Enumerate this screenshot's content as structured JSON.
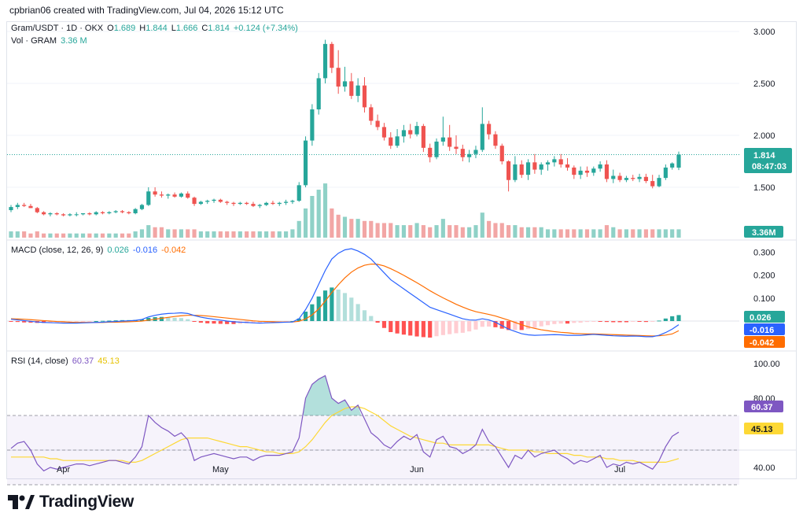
{
  "header": {
    "credit": "cpbrian06 created with TradingView.com, Jul 04, 2026 15:12 UTC"
  },
  "symbol_legend": {
    "symbol": "Gram/USDT · 1D · OKX",
    "open_label": "O",
    "open": "1.689",
    "high_label": "H",
    "high": "1.844",
    "low_label": "L",
    "low": "1.666",
    "close_label": "C",
    "close": "1.814",
    "change": "+0.124 (+7.34%)"
  },
  "volume_legend": {
    "label": "Vol · GRAM",
    "value": "3.36 M"
  },
  "macd_legend": {
    "label": "MACD (close, 12, 26, 9)",
    "hist": "0.026",
    "macd": "-0.016",
    "signal": "-0.042"
  },
  "rsi_legend": {
    "label": "RSI (14, close)",
    "rsi": "60.37",
    "rsi_ma": "45.13"
  },
  "price_tag": {
    "price": "1.814",
    "countdown": "08:47:03"
  },
  "volume_tag": "3.36M",
  "macd_tags": {
    "hist": "0.026",
    "macd": "-0.016",
    "signal": "-0.042"
  },
  "rsi_tags": {
    "rsi": "60.37",
    "rsi_ma": "45.13"
  },
  "brand": "TradingView",
  "colors": {
    "up": "#26a69a",
    "down": "#ef5350",
    "vol_up": "#8fd1c7",
    "vol_down": "#f2a6a5",
    "macd_line": "#2962ff",
    "signal_line": "#ff6d00",
    "rsi_line": "#7e57c2",
    "rsi_ma": "#fdd835"
  },
  "chart_data": [
    {
      "type": "candlestick",
      "title": "Gram/USDT · 1D · OKX",
      "x_ticks": [
        "Apr",
        "May",
        "Jun",
        "Jul"
      ],
      "y_ticks": [
        "3.000",
        "2.500",
        "2.000",
        "1.500"
      ],
      "ylim": [
        1.3,
        3.1
      ],
      "ohlc": [
        [
          1.28,
          1.33,
          1.26,
          1.31
        ],
        [
          1.31,
          1.35,
          1.29,
          1.33
        ],
        [
          1.33,
          1.35,
          1.31,
          1.32
        ],
        [
          1.32,
          1.34,
          1.3,
          1.3
        ],
        [
          1.3,
          1.31,
          1.25,
          1.26
        ],
        [
          1.26,
          1.27,
          1.23,
          1.24
        ],
        [
          1.24,
          1.26,
          1.22,
          1.25
        ],
        [
          1.25,
          1.26,
          1.23,
          1.24
        ],
        [
          1.24,
          1.25,
          1.22,
          1.23
        ],
        [
          1.23,
          1.25,
          1.22,
          1.24
        ],
        [
          1.24,
          1.26,
          1.22,
          1.24
        ],
        [
          1.24,
          1.25,
          1.23,
          1.25
        ],
        [
          1.25,
          1.26,
          1.23,
          1.24
        ],
        [
          1.24,
          1.27,
          1.23,
          1.26
        ],
        [
          1.26,
          1.27,
          1.24,
          1.25
        ],
        [
          1.25,
          1.27,
          1.24,
          1.26
        ],
        [
          1.26,
          1.28,
          1.25,
          1.27
        ],
        [
          1.27,
          1.28,
          1.25,
          1.26
        ],
        [
          1.26,
          1.27,
          1.24,
          1.25
        ],
        [
          1.25,
          1.3,
          1.24,
          1.29
        ],
        [
          1.29,
          1.34,
          1.28,
          1.33
        ],
        [
          1.33,
          1.5,
          1.32,
          1.46
        ],
        [
          1.46,
          1.5,
          1.41,
          1.43
        ],
        [
          1.43,
          1.46,
          1.4,
          1.42
        ],
        [
          1.42,
          1.44,
          1.39,
          1.43
        ],
        [
          1.43,
          1.45,
          1.4,
          1.41
        ],
        [
          1.41,
          1.45,
          1.4,
          1.44
        ],
        [
          1.44,
          1.46,
          1.39,
          1.4
        ],
        [
          1.4,
          1.41,
          1.32,
          1.34
        ],
        [
          1.34,
          1.37,
          1.33,
          1.36
        ],
        [
          1.36,
          1.38,
          1.34,
          1.37
        ],
        [
          1.37,
          1.39,
          1.35,
          1.38
        ],
        [
          1.38,
          1.39,
          1.35,
          1.36
        ],
        [
          1.36,
          1.37,
          1.33,
          1.35
        ],
        [
          1.35,
          1.36,
          1.32,
          1.34
        ],
        [
          1.34,
          1.36,
          1.33,
          1.35
        ],
        [
          1.35,
          1.36,
          1.33,
          1.34
        ],
        [
          1.34,
          1.36,
          1.31,
          1.32
        ],
        [
          1.32,
          1.34,
          1.3,
          1.33
        ],
        [
          1.33,
          1.36,
          1.32,
          1.35
        ],
        [
          1.35,
          1.37,
          1.33,
          1.34
        ],
        [
          1.34,
          1.36,
          1.32,
          1.35
        ],
        [
          1.35,
          1.38,
          1.33,
          1.36
        ],
        [
          1.36,
          1.38,
          1.34,
          1.37
        ],
        [
          1.37,
          1.55,
          1.36,
          1.52
        ],
        [
          1.52,
          1.99,
          1.5,
          1.95
        ],
        [
          1.95,
          2.3,
          1.9,
          2.25
        ],
        [
          2.25,
          2.6,
          2.2,
          2.55
        ],
        [
          2.55,
          2.92,
          2.5,
          2.88
        ],
        [
          2.88,
          2.9,
          2.6,
          2.65
        ],
        [
          2.65,
          2.82,
          2.4,
          2.47
        ],
        [
          2.47,
          2.66,
          2.42,
          2.52
        ],
        [
          2.52,
          2.6,
          2.35,
          2.38
        ],
        [
          2.38,
          2.55,
          2.32,
          2.48
        ],
        [
          2.48,
          2.56,
          2.22,
          2.27
        ],
        [
          2.27,
          2.3,
          2.1,
          2.14
        ],
        [
          2.14,
          2.2,
          2.05,
          2.08
        ],
        [
          2.08,
          2.12,
          1.95,
          1.98
        ],
        [
          1.98,
          2.03,
          1.87,
          1.9
        ],
        [
          1.9,
          2.06,
          1.88,
          1.99
        ],
        [
          1.99,
          2.1,
          1.93,
          2.05
        ],
        [
          2.05,
          2.11,
          1.97,
          2.01
        ],
        [
          2.01,
          2.13,
          1.99,
          2.09
        ],
        [
          2.09,
          2.11,
          1.84,
          1.88
        ],
        [
          1.88,
          1.92,
          1.74,
          1.79
        ],
        [
          1.79,
          1.97,
          1.77,
          1.94
        ],
        [
          1.94,
          2.18,
          1.9,
          1.98
        ],
        [
          1.98,
          2.1,
          1.85,
          1.89
        ],
        [
          1.89,
          2.0,
          1.82,
          1.87
        ],
        [
          1.87,
          1.91,
          1.75,
          1.79
        ],
        [
          1.79,
          1.86,
          1.74,
          1.82
        ],
        [
          1.82,
          1.9,
          1.78,
          1.86
        ],
        [
          1.86,
          2.27,
          1.84,
          2.11
        ],
        [
          2.11,
          2.14,
          1.96,
          2.01
        ],
        [
          2.01,
          2.04,
          1.87,
          1.9
        ],
        [
          1.9,
          1.92,
          1.72,
          1.75
        ],
        [
          1.75,
          1.76,
          1.46,
          1.57
        ],
        [
          1.57,
          1.8,
          1.55,
          1.72
        ],
        [
          1.72,
          1.76,
          1.59,
          1.62
        ],
        [
          1.62,
          1.77,
          1.57,
          1.74
        ],
        [
          1.74,
          1.82,
          1.63,
          1.67
        ],
        [
          1.67,
          1.74,
          1.62,
          1.72
        ],
        [
          1.72,
          1.76,
          1.66,
          1.74
        ],
        [
          1.74,
          1.8,
          1.7,
          1.77
        ],
        [
          1.77,
          1.82,
          1.69,
          1.72
        ],
        [
          1.72,
          1.78,
          1.66,
          1.69
        ],
        [
          1.69,
          1.71,
          1.58,
          1.62
        ],
        [
          1.62,
          1.7,
          1.58,
          1.66
        ],
        [
          1.66,
          1.7,
          1.6,
          1.64
        ],
        [
          1.64,
          1.7,
          1.61,
          1.68
        ],
        [
          1.68,
          1.75,
          1.65,
          1.72
        ],
        [
          1.72,
          1.76,
          1.55,
          1.58
        ],
        [
          1.58,
          1.67,
          1.54,
          1.61
        ],
        [
          1.61,
          1.64,
          1.55,
          1.57
        ],
        [
          1.57,
          1.61,
          1.55,
          1.59
        ],
        [
          1.59,
          1.62,
          1.56,
          1.58
        ],
        [
          1.58,
          1.63,
          1.55,
          1.6
        ],
        [
          1.6,
          1.63,
          1.54,
          1.56
        ],
        [
          1.56,
          1.62,
          1.49,
          1.51
        ],
        [
          1.51,
          1.62,
          1.5,
          1.59
        ],
        [
          1.59,
          1.72,
          1.57,
          1.69
        ],
        [
          1.69,
          1.74,
          1.67,
          1.73
        ],
        [
          1.689,
          1.844,
          1.666,
          1.814
        ]
      ]
    },
    {
      "type": "bar",
      "title": "Vol · GRAM",
      "note": "relative daily volume, last bar 3.36 M",
      "values": [
        3,
        3,
        3,
        2,
        3,
        2,
        2,
        2,
        2,
        2,
        2,
        2,
        2,
        2,
        2,
        2,
        2,
        2,
        2,
        3,
        4,
        6,
        5,
        5,
        4,
        4,
        4,
        4,
        4,
        3,
        3,
        3,
        3,
        3,
        3,
        3,
        3,
        3,
        3,
        3,
        3,
        3,
        3,
        4,
        8,
        14,
        20,
        23,
        26,
        14,
        11,
        10,
        9,
        9,
        8,
        8,
        7,
        7,
        7,
        6,
        6,
        6,
        7,
        6,
        5,
        6,
        9,
        6,
        6,
        5,
        5,
        6,
        12,
        8,
        7,
        7,
        6,
        6,
        5,
        5,
        5,
        5,
        4,
        4,
        4,
        4,
        4,
        4,
        4,
        4,
        4,
        6,
        5,
        4,
        4,
        4,
        4,
        4,
        4,
        4,
        4,
        4,
        4
      ],
      "last_value": "3.36M"
    },
    {
      "type": "line",
      "title": "MACD (close, 12, 26, 9)",
      "y_ticks": [
        "0.300",
        "0.200",
        "0.100"
      ],
      "ylim": [
        -0.08,
        0.34
      ],
      "series": [
        {
          "name": "MACD",
          "values": [
            0.008,
            0.005,
            0.002,
            -0.001,
            -0.004,
            -0.006,
            -0.007,
            -0.008,
            -0.009,
            -0.009,
            -0.009,
            -0.008,
            -0.007,
            -0.006,
            -0.005,
            -0.003,
            -0.002,
            0.0,
            0.001,
            0.003,
            0.007,
            0.018,
            0.025,
            0.03,
            0.033,
            0.034,
            0.036,
            0.033,
            0.024,
            0.017,
            0.012,
            0.008,
            0.004,
            0.0,
            -0.003,
            -0.005,
            -0.006,
            -0.008,
            -0.009,
            -0.008,
            -0.007,
            -0.006,
            -0.005,
            -0.004,
            0.01,
            0.05,
            0.1,
            0.16,
            0.22,
            0.27,
            0.295,
            0.31,
            0.315,
            0.305,
            0.29,
            0.27,
            0.24,
            0.21,
            0.18,
            0.16,
            0.14,
            0.12,
            0.1,
            0.08,
            0.06,
            0.05,
            0.04,
            0.03,
            0.02,
            0.01,
            0.005,
            0.004,
            0.01,
            0.005,
            -0.005,
            -0.02,
            -0.035,
            -0.045,
            -0.055,
            -0.06,
            -0.062,
            -0.061,
            -0.06,
            -0.059,
            -0.06,
            -0.062,
            -0.062,
            -0.062,
            -0.06,
            -0.058,
            -0.06,
            -0.062,
            -0.064,
            -0.065,
            -0.066,
            -0.065,
            -0.066,
            -0.068,
            -0.068,
            -0.062,
            -0.05,
            -0.035,
            -0.016
          ]
        },
        {
          "name": "Signal",
          "values": [
            0.01,
            0.009,
            0.008,
            0.006,
            0.004,
            0.002,
            0.0,
            -0.002,
            -0.003,
            -0.005,
            -0.006,
            -0.006,
            -0.006,
            -0.006,
            -0.006,
            -0.005,
            -0.005,
            -0.004,
            -0.003,
            -0.002,
            0.0,
            0.004,
            0.008,
            0.012,
            0.016,
            0.02,
            0.023,
            0.025,
            0.025,
            0.024,
            0.022,
            0.019,
            0.016,
            0.013,
            0.01,
            0.007,
            0.004,
            0.001,
            -0.001,
            -0.002,
            -0.003,
            -0.004,
            -0.004,
            -0.004,
            -0.001,
            0.009,
            0.027,
            0.053,
            0.087,
            0.124,
            0.158,
            0.188,
            0.213,
            0.231,
            0.243,
            0.248,
            0.247,
            0.24,
            0.228,
            0.214,
            0.199,
            0.183,
            0.167,
            0.15,
            0.132,
            0.116,
            0.101,
            0.087,
            0.073,
            0.061,
            0.05,
            0.041,
            0.035,
            0.029,
            0.022,
            0.013,
            0.004,
            -0.006,
            -0.016,
            -0.025,
            -0.032,
            -0.038,
            -0.042,
            -0.046,
            -0.049,
            -0.051,
            -0.054,
            -0.055,
            -0.056,
            -0.056,
            -0.057,
            -0.058,
            -0.059,
            -0.06,
            -0.061,
            -0.062,
            -0.063,
            -0.064,
            -0.065,
            -0.064,
            -0.061,
            -0.056,
            -0.042
          ]
        }
      ],
      "histogram_last": "0.026"
    },
    {
      "type": "line",
      "title": "RSI (14, close)",
      "y_ticks": [
        "100.00",
        "80.00",
        "40.00"
      ],
      "ylim": [
        20,
        105
      ],
      "bands": [
        70,
        50,
        30
      ],
      "series": [
        {
          "name": "RSI",
          "values": [
            51,
            54,
            55,
            50,
            42,
            38,
            40,
            39,
            40,
            41,
            42,
            42,
            41,
            42,
            43,
            44,
            44,
            43,
            42,
            46,
            52,
            70,
            66,
            63,
            61,
            58,
            60,
            56,
            44,
            46,
            47,
            48,
            47,
            46,
            45,
            46,
            46,
            44,
            46,
            47,
            47,
            47,
            48,
            49,
            57,
            80,
            88,
            91,
            93,
            80,
            77,
            79,
            73,
            76,
            68,
            60,
            57,
            53,
            51,
            55,
            58,
            56,
            59,
            49,
            46,
            56,
            58,
            52,
            51,
            48,
            50,
            53,
            62,
            55,
            52,
            46,
            40,
            47,
            45,
            50,
            46,
            48,
            49,
            50,
            47,
            45,
            42,
            44,
            43,
            45,
            47,
            40,
            42,
            41,
            43,
            42,
            43,
            41,
            39,
            44,
            52,
            58,
            60.37
          ]
        },
        {
          "name": "RSI MA",
          "values": [
            46,
            46,
            46,
            46,
            46,
            46,
            45,
            45,
            44,
            44,
            44,
            44,
            44,
            44,
            44,
            44,
            44,
            44,
            43,
            43,
            44,
            46,
            48,
            50,
            52,
            54,
            56,
            57,
            57,
            57,
            57,
            56,
            55,
            54,
            53,
            52,
            52,
            51,
            50,
            49,
            49,
            48,
            48,
            48,
            49,
            52,
            56,
            61,
            66,
            70,
            72,
            74,
            75,
            75,
            74,
            72,
            70,
            67,
            64,
            62,
            60,
            58,
            57,
            56,
            55,
            54,
            54,
            53,
            53,
            53,
            53,
            53,
            53,
            53,
            52,
            51,
            50,
            50,
            50,
            50,
            49,
            49,
            48,
            48,
            48,
            48,
            47,
            47,
            46,
            46,
            46,
            45,
            45,
            44,
            44,
            44,
            43,
            43,
            43,
            43,
            43,
            44,
            45.13
          ]
        }
      ]
    }
  ]
}
